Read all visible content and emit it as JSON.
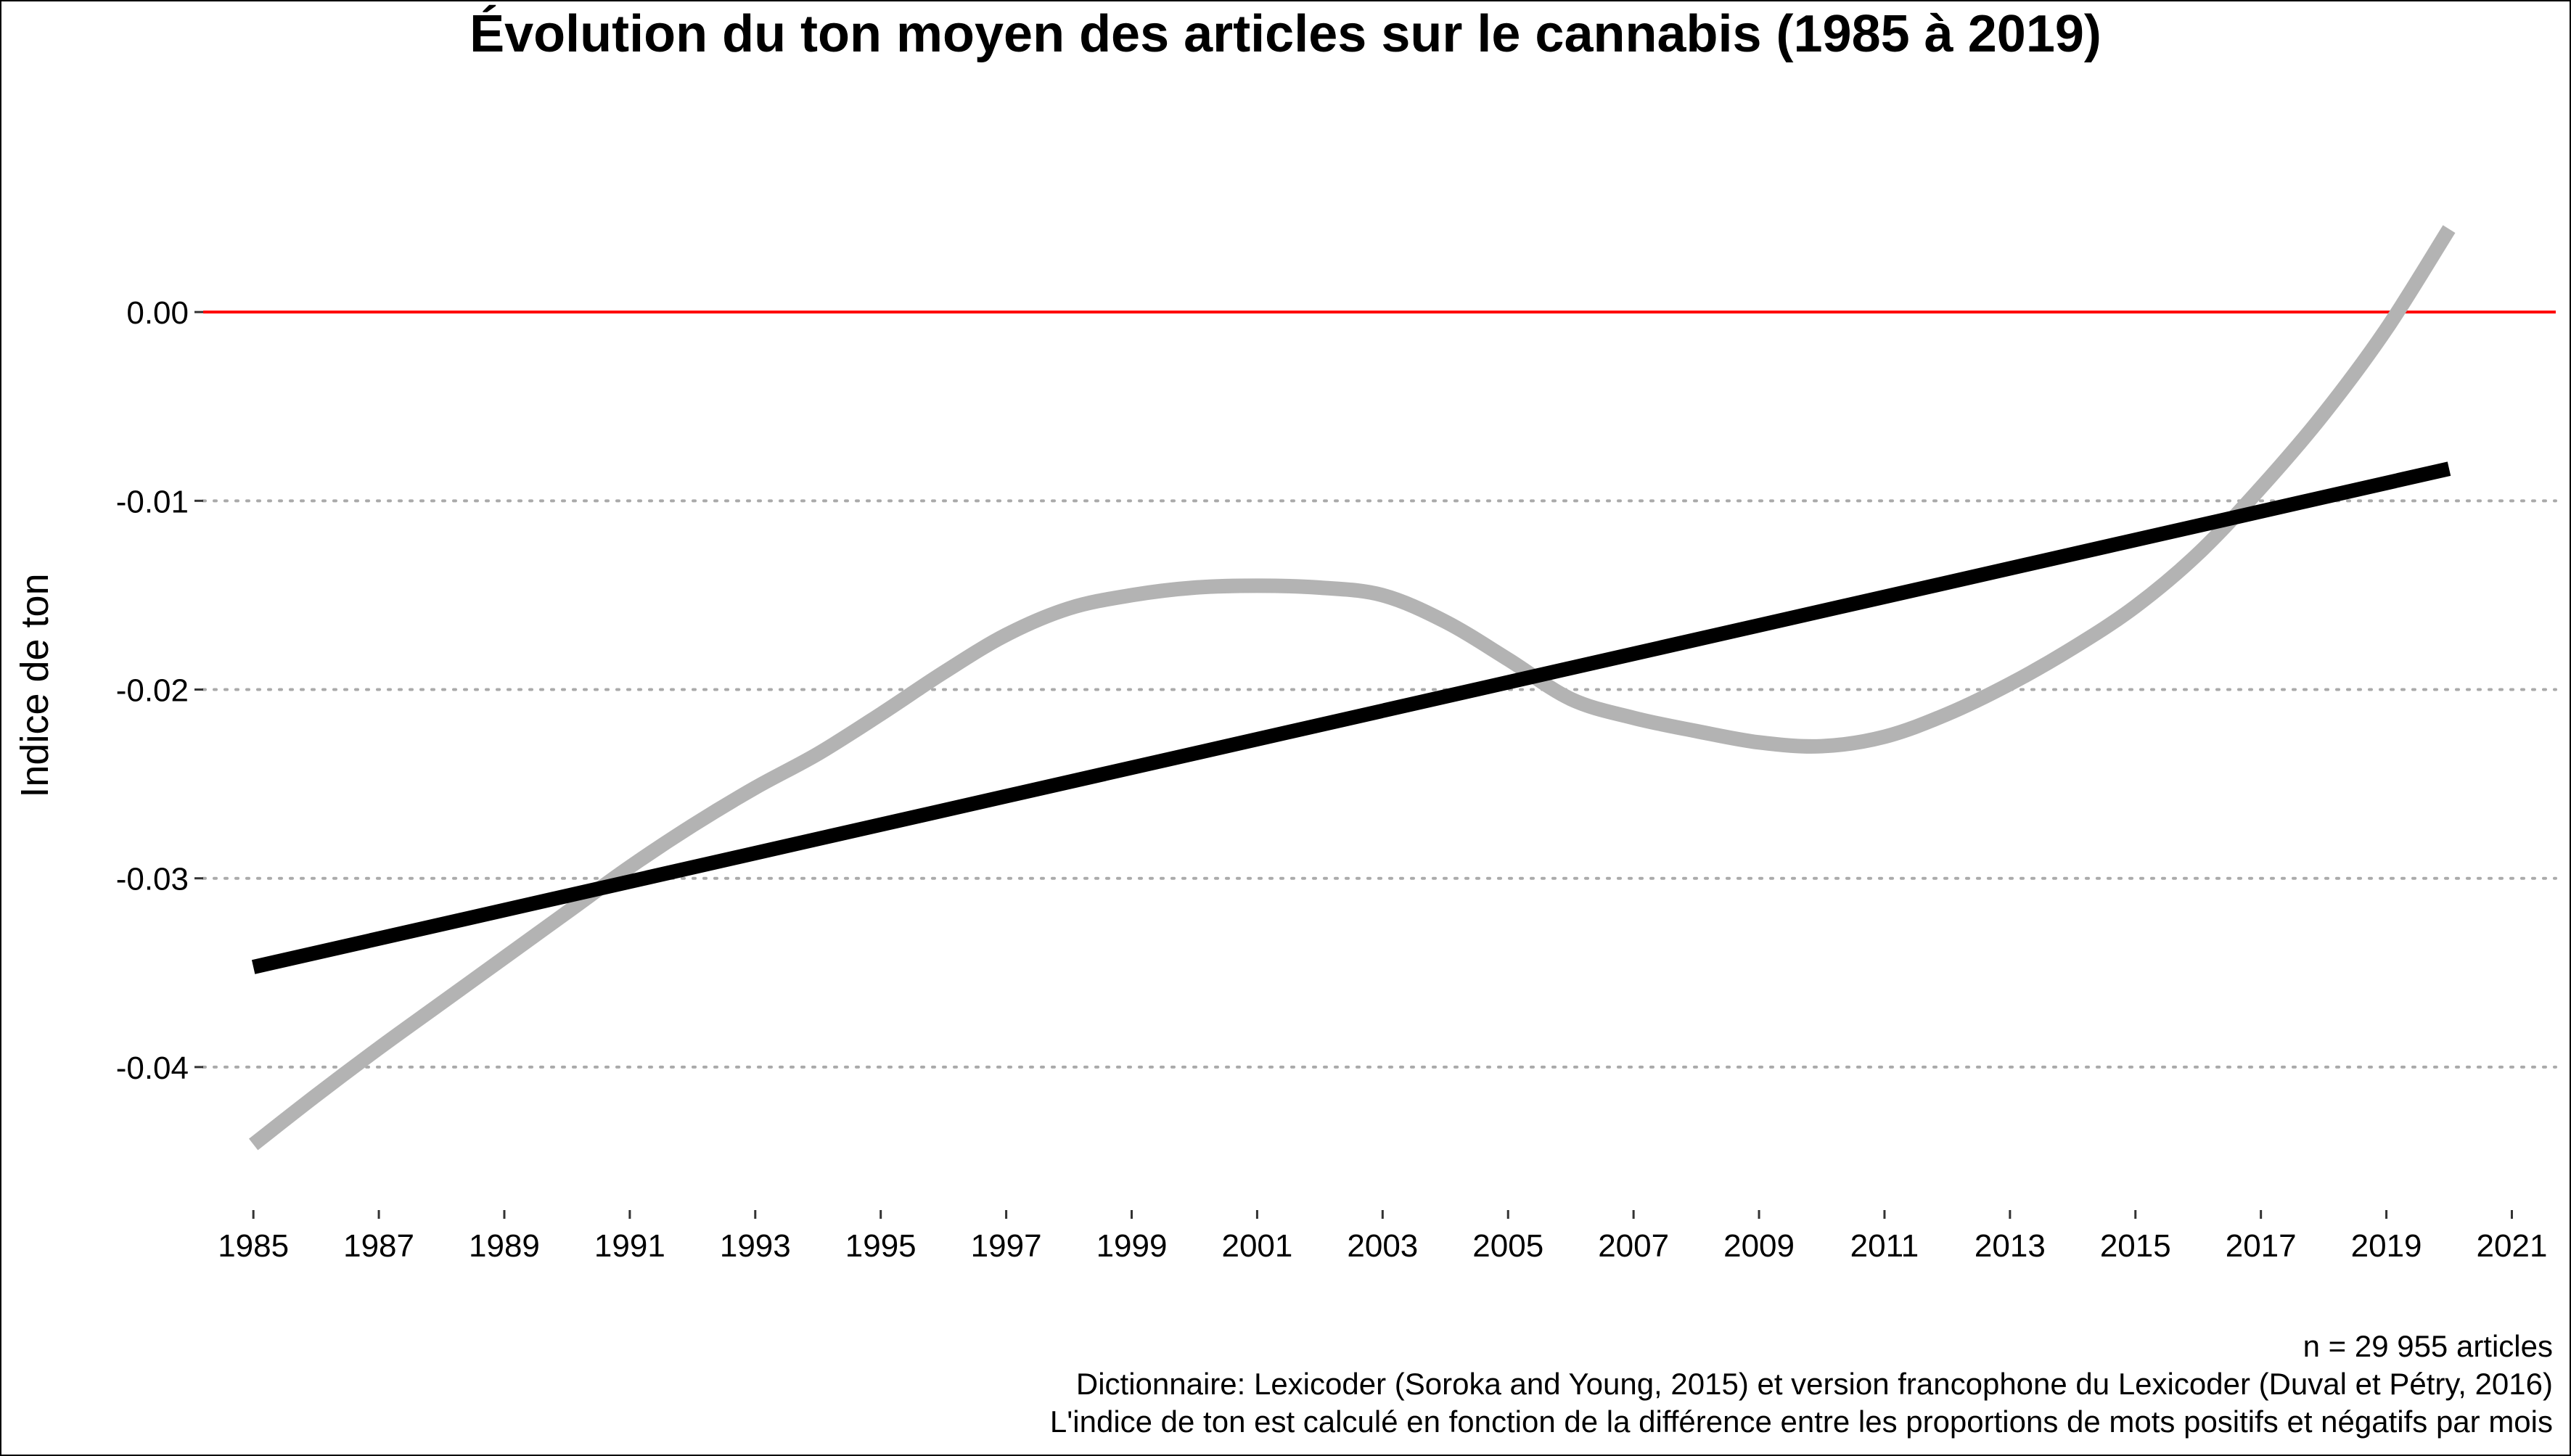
{
  "chart_data": {
    "type": "line",
    "title": "Évolution du ton moyen des articles sur le cannabis (1985 à 2019)",
    "xlabel": "",
    "ylabel": "Indice de ton",
    "xlim": [
      1984.2,
      2021.7
    ],
    "ylim": [
      -0.0465,
      0.0075
    ],
    "x_ticks": [
      1985,
      1987,
      1989,
      1991,
      1993,
      1995,
      1997,
      1999,
      2001,
      2003,
      2005,
      2007,
      2009,
      2011,
      2013,
      2015,
      2017,
      2019,
      2021
    ],
    "y_ticks": [
      0.0,
      -0.01,
      -0.02,
      -0.03,
      -0.04
    ],
    "y_tick_labels": [
      "0.00",
      "-0.01",
      "-0.02",
      "-0.03",
      "-0.04"
    ],
    "grid": "horizontal dotted",
    "reference_line": {
      "y": 0.0,
      "color": "#ff0000"
    },
    "series": [
      {
        "kind": "smooth",
        "color": "#b3b3b3",
        "points": [
          [
            1985.0,
            -0.0441
          ],
          [
            1986.0,
            -0.0415
          ],
          [
            1987.0,
            -0.039
          ],
          [
            1988.0,
            -0.0366
          ],
          [
            1989.0,
            -0.0342
          ],
          [
            1990.0,
            -0.0318
          ],
          [
            1991.0,
            -0.0294
          ],
          [
            1992.0,
            -0.0272
          ],
          [
            1993.0,
            -0.0252
          ],
          [
            1994.0,
            -0.0234
          ],
          [
            1995.0,
            -0.0213
          ],
          [
            1996.0,
            -0.0191
          ],
          [
            1997.0,
            -0.0171
          ],
          [
            1998.0,
            -0.0157
          ],
          [
            1999.0,
            -0.015
          ],
          [
            2000.0,
            -0.0146
          ],
          [
            2001.0,
            -0.0145
          ],
          [
            2002.0,
            -0.0146
          ],
          [
            2003.0,
            -0.015
          ],
          [
            2004.0,
            -0.0164
          ],
          [
            2005.0,
            -0.0184
          ],
          [
            2006.0,
            -0.0205
          ],
          [
            2007.0,
            -0.0215
          ],
          [
            2008.0,
            -0.0222
          ],
          [
            2009.0,
            -0.0228
          ],
          [
            2010.0,
            -0.023
          ],
          [
            2011.0,
            -0.0225
          ],
          [
            2012.0,
            -0.0213
          ],
          [
            2013.0,
            -0.0197
          ],
          [
            2014.0,
            -0.0178
          ],
          [
            2015.0,
            -0.0156
          ],
          [
            2016.0,
            -0.0128
          ],
          [
            2017.0,
            -0.0093
          ],
          [
            2018.0,
            -0.0054
          ],
          [
            2019.0,
            -0.0009
          ],
          [
            2020.0,
            0.0044
          ]
        ]
      },
      {
        "kind": "linear",
        "color": "#000000",
        "points": [
          [
            1985.0,
            -0.0347
          ],
          [
            2020.0,
            -0.0083
          ]
        ]
      }
    ]
  },
  "caption": {
    "line1": "n = 29 955 articles",
    "line2": "Dictionnaire: Lexicoder (Soroka and Young, 2015) et version francophone du Lexicoder (Duval et Pétry, 2016)",
    "line3": "L'indice de ton est calculé en fonction de la différence entre les proportions de mots positifs et négatifs par mois"
  }
}
